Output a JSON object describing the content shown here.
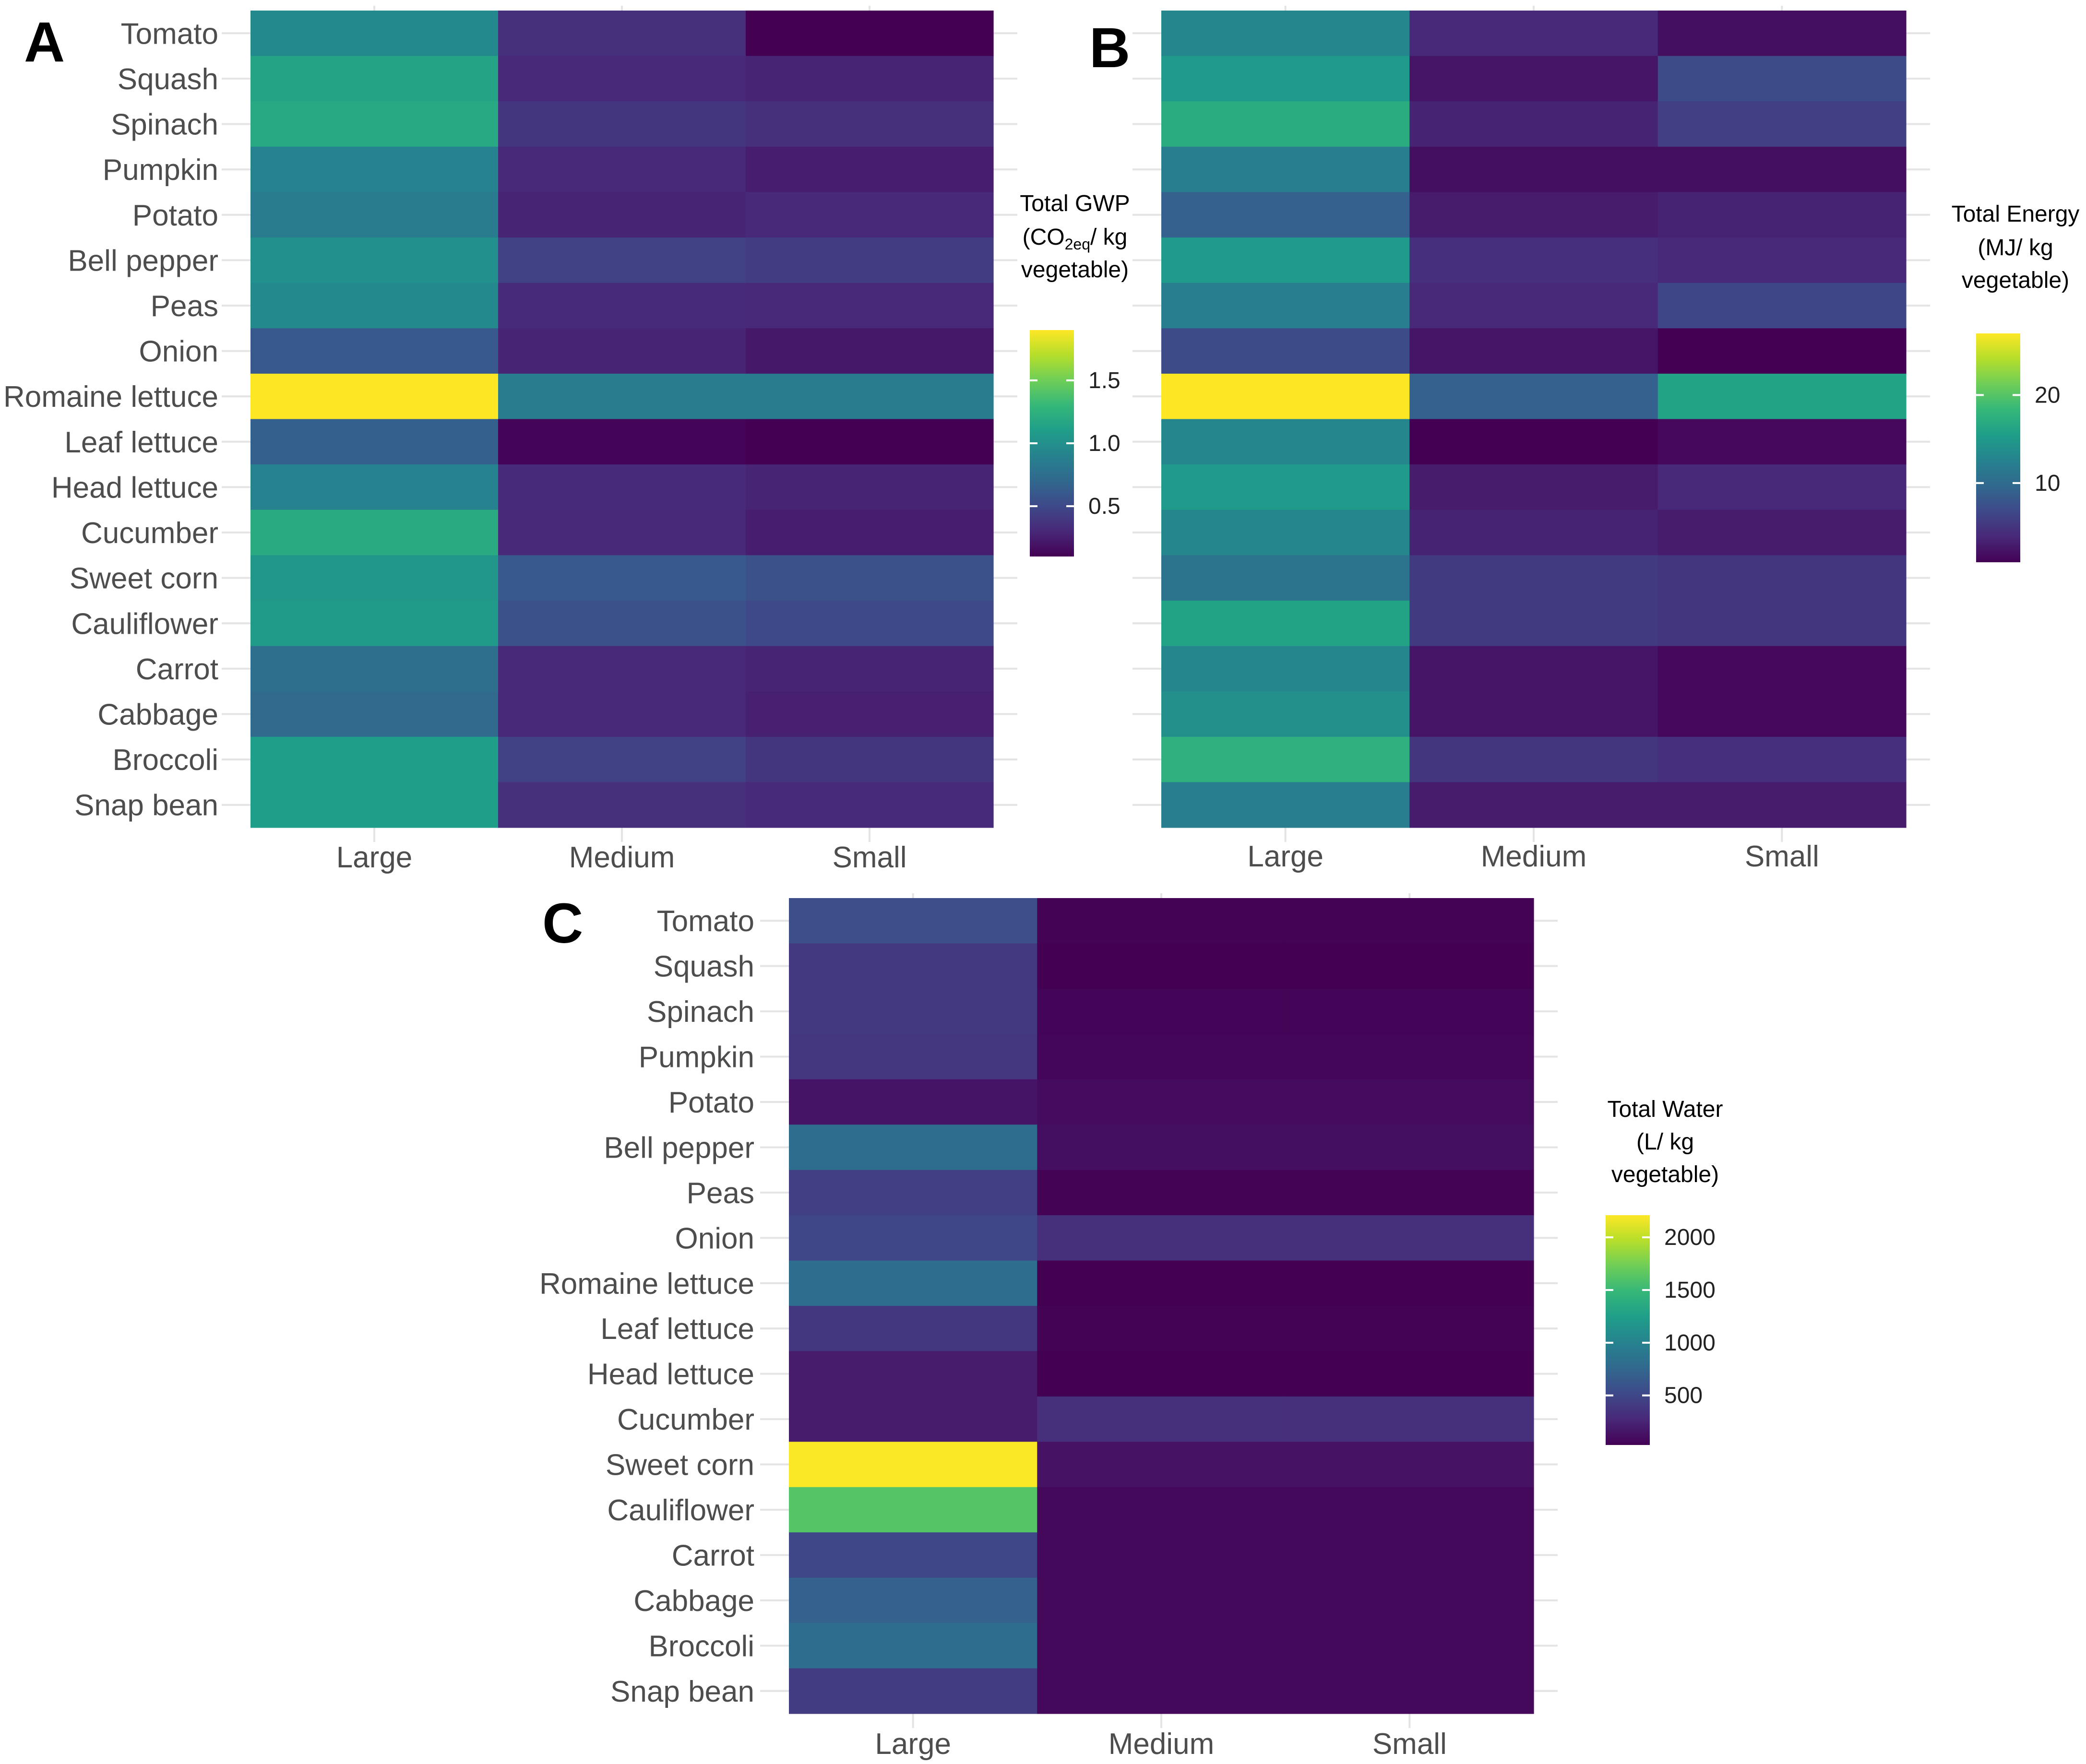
{
  "figure": {
    "vegetables": [
      "Tomato",
      "Squash",
      "Spinach",
      "Pumpkin",
      "Potato",
      "Bell pepper",
      "Peas",
      "Onion",
      "Romaine lettuce",
      "Leaf lettuce",
      "Head lettuce",
      "Cucumber",
      "Sweet corn",
      "Cauliflower",
      "Carrot",
      "Cabbage",
      "Broccoli",
      "Snap bean"
    ],
    "sizes": [
      "Large",
      "Medium",
      "Small"
    ],
    "colors": {
      "viridis": [
        "#440154",
        "#482878",
        "#3e4989",
        "#31688e",
        "#26828e",
        "#1f9e89",
        "#35b779",
        "#6ece58",
        "#b5de2b",
        "#fde725"
      ],
      "gridline": "#e4e4e4",
      "label": "#4d4d4d"
    }
  },
  "chart_data": [
    {
      "type": "heatmap",
      "panel": "A",
      "title": "",
      "legend": {
        "title_lines": [
          "Total GWP",
          "(CO",
          "2eq",
          "/ kg",
          "vegetable)"
        ],
        "ticks": [
          0.5,
          1.0,
          1.5
        ],
        "tick_labels": [
          "0.5",
          "1.0",
          "1.5"
        ],
        "range": [
          0.1,
          1.9
        ]
      },
      "rows": [
        "Tomato",
        "Squash",
        "Spinach",
        "Pumpkin",
        "Potato",
        "Bell pepper",
        "Peas",
        "Onion",
        "Romaine lettuce",
        "Leaf lettuce",
        "Head lettuce",
        "Cucumber",
        "Sweet corn",
        "Cauliflower",
        "Carrot",
        "Cabbage",
        "Broccoli",
        "Snap bean"
      ],
      "columns": [
        "Large",
        "Medium",
        "Small"
      ],
      "values": [
        [
          0.95,
          0.35,
          0.1
        ],
        [
          1.15,
          0.3,
          0.28
        ],
        [
          1.18,
          0.38,
          0.35
        ],
        [
          0.9,
          0.3,
          0.25
        ],
        [
          0.85,
          0.28,
          0.3
        ],
        [
          1.0,
          0.45,
          0.42
        ],
        [
          0.95,
          0.32,
          0.3
        ],
        [
          0.6,
          0.28,
          0.22
        ],
        [
          1.9,
          0.85,
          0.85
        ],
        [
          0.65,
          0.12,
          0.1
        ],
        [
          0.9,
          0.32,
          0.28
        ],
        [
          1.2,
          0.3,
          0.25
        ],
        [
          1.05,
          0.6,
          0.55
        ],
        [
          1.08,
          0.55,
          0.5
        ],
        [
          0.75,
          0.3,
          0.28
        ],
        [
          0.72,
          0.3,
          0.26
        ],
        [
          1.1,
          0.45,
          0.38
        ],
        [
          1.1,
          0.35,
          0.32
        ]
      ]
    },
    {
      "type": "heatmap",
      "panel": "B",
      "title": "",
      "legend": {
        "title_lines": [
          "Total Energy",
          "(MJ/ kg",
          "vegetable)"
        ],
        "ticks": [
          10,
          20
        ],
        "tick_labels": [
          "10",
          "20"
        ],
        "range": [
          1,
          27
        ]
      },
      "rows": [
        "Tomato",
        "Squash",
        "Spinach",
        "Pumpkin",
        "Potato",
        "Bell pepper",
        "Peas",
        "Onion",
        "Romaine lettuce",
        "Leaf lettuce",
        "Head lettuce",
        "Cucumber",
        "Sweet corn",
        "Cauliflower",
        "Carrot",
        "Cabbage",
        "Broccoli",
        "Snap bean"
      ],
      "columns": [
        "Large",
        "Medium",
        "Small"
      ],
      "values": [
        [
          13,
          4,
          2
        ],
        [
          15,
          2.5,
          7
        ],
        [
          17,
          3.5,
          6
        ],
        [
          12,
          2,
          2
        ],
        [
          9,
          3,
          3.5
        ],
        [
          15,
          4.5,
          4
        ],
        [
          12,
          4,
          6.5
        ],
        [
          7,
          2.5,
          1
        ],
        [
          27,
          9,
          16
        ],
        [
          13,
          1,
          1.5
        ],
        [
          15,
          3,
          4
        ],
        [
          13,
          3.5,
          3
        ],
        [
          11,
          5.5,
          5
        ],
        [
          16,
          5.5,
          5
        ],
        [
          13,
          2.5,
          1.5
        ],
        [
          14,
          2.5,
          1.5
        ],
        [
          17.5,
          5,
          4.5
        ],
        [
          12,
          3,
          3
        ]
      ]
    },
    {
      "type": "heatmap",
      "panel": "C",
      "title": "",
      "legend": {
        "title_lines": [
          "Total Water",
          "(L/ kg",
          "vegetable)"
        ],
        "ticks": [
          500,
          1000,
          1500,
          2000
        ],
        "tick_labels": [
          "500",
          "1000",
          "1500",
          "2000"
        ],
        "range": [
          30,
          2210
        ]
      },
      "rows": [
        "Tomato",
        "Squash",
        "Spinach",
        "Pumpkin",
        "Potato",
        "Bell pepper",
        "Peas",
        "Onion",
        "Romaine lettuce",
        "Leaf lettuce",
        "Head lettuce",
        "Cucumber",
        "Sweet corn",
        "Cauliflower",
        "Carrot",
        "Cabbage",
        "Broccoli",
        "Snap bean"
      ],
      "columns": [
        "Large",
        "Medium",
        "Small"
      ],
      "values": [
        [
          560,
          40,
          40
        ],
        [
          400,
          30,
          30
        ],
        [
          400,
          50,
          50
        ],
        [
          380,
          60,
          60
        ],
        [
          150,
          90,
          90
        ],
        [
          800,
          120,
          120
        ],
        [
          450,
          40,
          40
        ],
        [
          500,
          330,
          330
        ],
        [
          800,
          30,
          30
        ],
        [
          390,
          40,
          40
        ],
        [
          200,
          30,
          30
        ],
        [
          200,
          320,
          320
        ],
        [
          2200,
          140,
          140
        ],
        [
          1620,
          80,
          80
        ],
        [
          500,
          80,
          80
        ],
        [
          700,
          80,
          80
        ],
        [
          800,
          80,
          80
        ],
        [
          420,
          80,
          80
        ]
      ]
    }
  ]
}
